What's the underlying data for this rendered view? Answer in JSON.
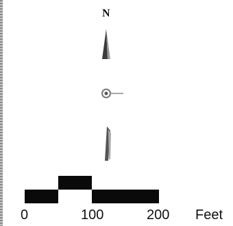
{
  "north_arrow": {
    "label": "N",
    "icon": "north-arrow-icon"
  },
  "scale_bar": {
    "ticks": [
      "0",
      "100",
      "200"
    ],
    "unit": "Feet",
    "segment_colors": [
      "#0a0a0a",
      "#ffffff"
    ]
  }
}
